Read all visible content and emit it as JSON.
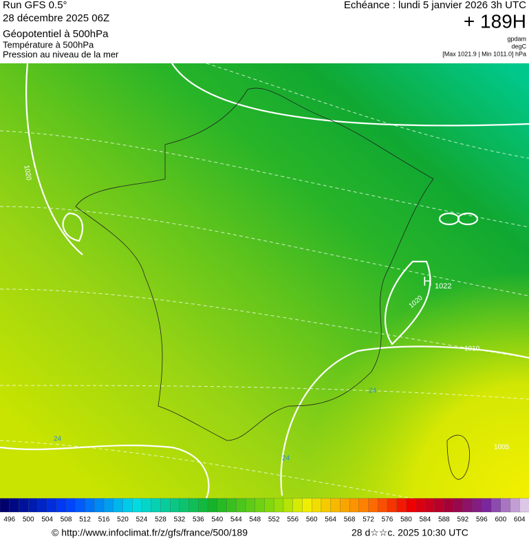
{
  "header": {
    "run": "Run GFS 0.5°",
    "date": "28 décembre 2025 06Z",
    "field1": "Géopotentiel à 500hPa",
    "field2": "Température à 500hPa",
    "field3": "Pression au niveau de la mer",
    "echeance": "Echéance : lundi 5 janvier 2026 3h UTC",
    "lead": "+ 189H",
    "unit1": "gpdam",
    "unit2": "degC",
    "unit3": "[Max 1021.9 | Min 1011.0] hPa"
  },
  "map_labels": {
    "isobar_left": "1020",
    "high": "H",
    "high_value": "1022",
    "isobar_east": "1020",
    "isobar_1010": "1010",
    "isobar_1005": "1005",
    "temp_left": "24",
    "temp_south": "24",
    "temp_southeast": "24"
  },
  "colorbar": {
    "labels": [
      496,
      500,
      504,
      508,
      512,
      516,
      520,
      524,
      528,
      532,
      536,
      540,
      544,
      548,
      552,
      556,
      560,
      564,
      568,
      572,
      576,
      580,
      584,
      588,
      592,
      596,
      600,
      604
    ]
  },
  "footer": {
    "source": "© http://www.infoclimat.fr/z/gfs/france/500/189",
    "generated": "28 d☆☆c. 2025 10:30 UTC"
  }
}
